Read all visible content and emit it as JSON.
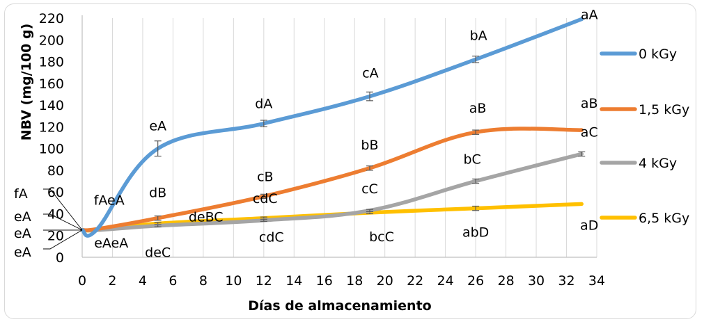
{
  "chart_data": {
    "type": "line",
    "xlabel": "Días de almacenamiento",
    "ylabel": "NBV (mg/100 g)",
    "xlim": [
      0,
      34
    ],
    "ylim": [
      0,
      220
    ],
    "xticks": [
      0,
      2,
      4,
      6,
      8,
      10,
      12,
      14,
      16,
      18,
      20,
      22,
      24,
      26,
      28,
      30,
      32,
      34
    ],
    "yticks": [
      0,
      20,
      40,
      60,
      80,
      100,
      120,
      140,
      160,
      180,
      200,
      220
    ],
    "grid": "vertical",
    "legend_position": "right",
    "series": [
      {
        "name": "0 kGy",
        "color": "#5b9bd5",
        "x": [
          0,
          1,
          5,
          12,
          19,
          26,
          33
        ],
        "y": [
          25,
          26,
          100,
          123,
          148,
          182,
          219
        ],
        "errors": [
          0,
          0,
          7,
          3,
          4,
          3,
          0
        ],
        "labels": [
          "",
          "fAeA",
          "eA",
          "dA",
          "cA",
          "bA",
          "aA"
        ]
      },
      {
        "name": "1,5 kGy",
        "color": "#ed7d31",
        "x": [
          0,
          1,
          5,
          12,
          19,
          26,
          33
        ],
        "y": [
          25,
          26,
          36,
          56,
          82,
          115,
          117
        ],
        "errors": [
          0,
          0,
          2,
          2,
          2,
          2,
          0
        ],
        "labels": [
          "",
          "",
          "dB",
          "cB",
          "bB",
          "aB",
          "aB"
        ]
      },
      {
        "name": "4 kGy",
        "color": "#a5a5a5",
        "x": [
          0,
          1,
          5,
          12,
          19,
          26,
          33
        ],
        "y": [
          25,
          25,
          29,
          34,
          43,
          70,
          95
        ],
        "errors": [
          0,
          0,
          1,
          1,
          1,
          2,
          2
        ],
        "labels": [
          "",
          "",
          "deC",
          "cdC",
          "cC",
          "bC",
          "aC"
        ]
      },
      {
        "name": "6,5 kGy",
        "color": "#ffc000",
        "x": [
          0,
          1,
          5,
          12,
          19,
          26,
          33
        ],
        "y": [
          25,
          25,
          31,
          36,
          41,
          45,
          49
        ],
        "errors": [
          0,
          0,
          1,
          1,
          1,
          2,
          0
        ],
        "labels": [
          "",
          "eAeA",
          "deBC",
          "cdC",
          "bcC",
          "abD",
          "aD"
        ]
      }
    ],
    "left_callouts": [
      "fA",
      "eA",
      "eA",
      "eA"
    ]
  }
}
